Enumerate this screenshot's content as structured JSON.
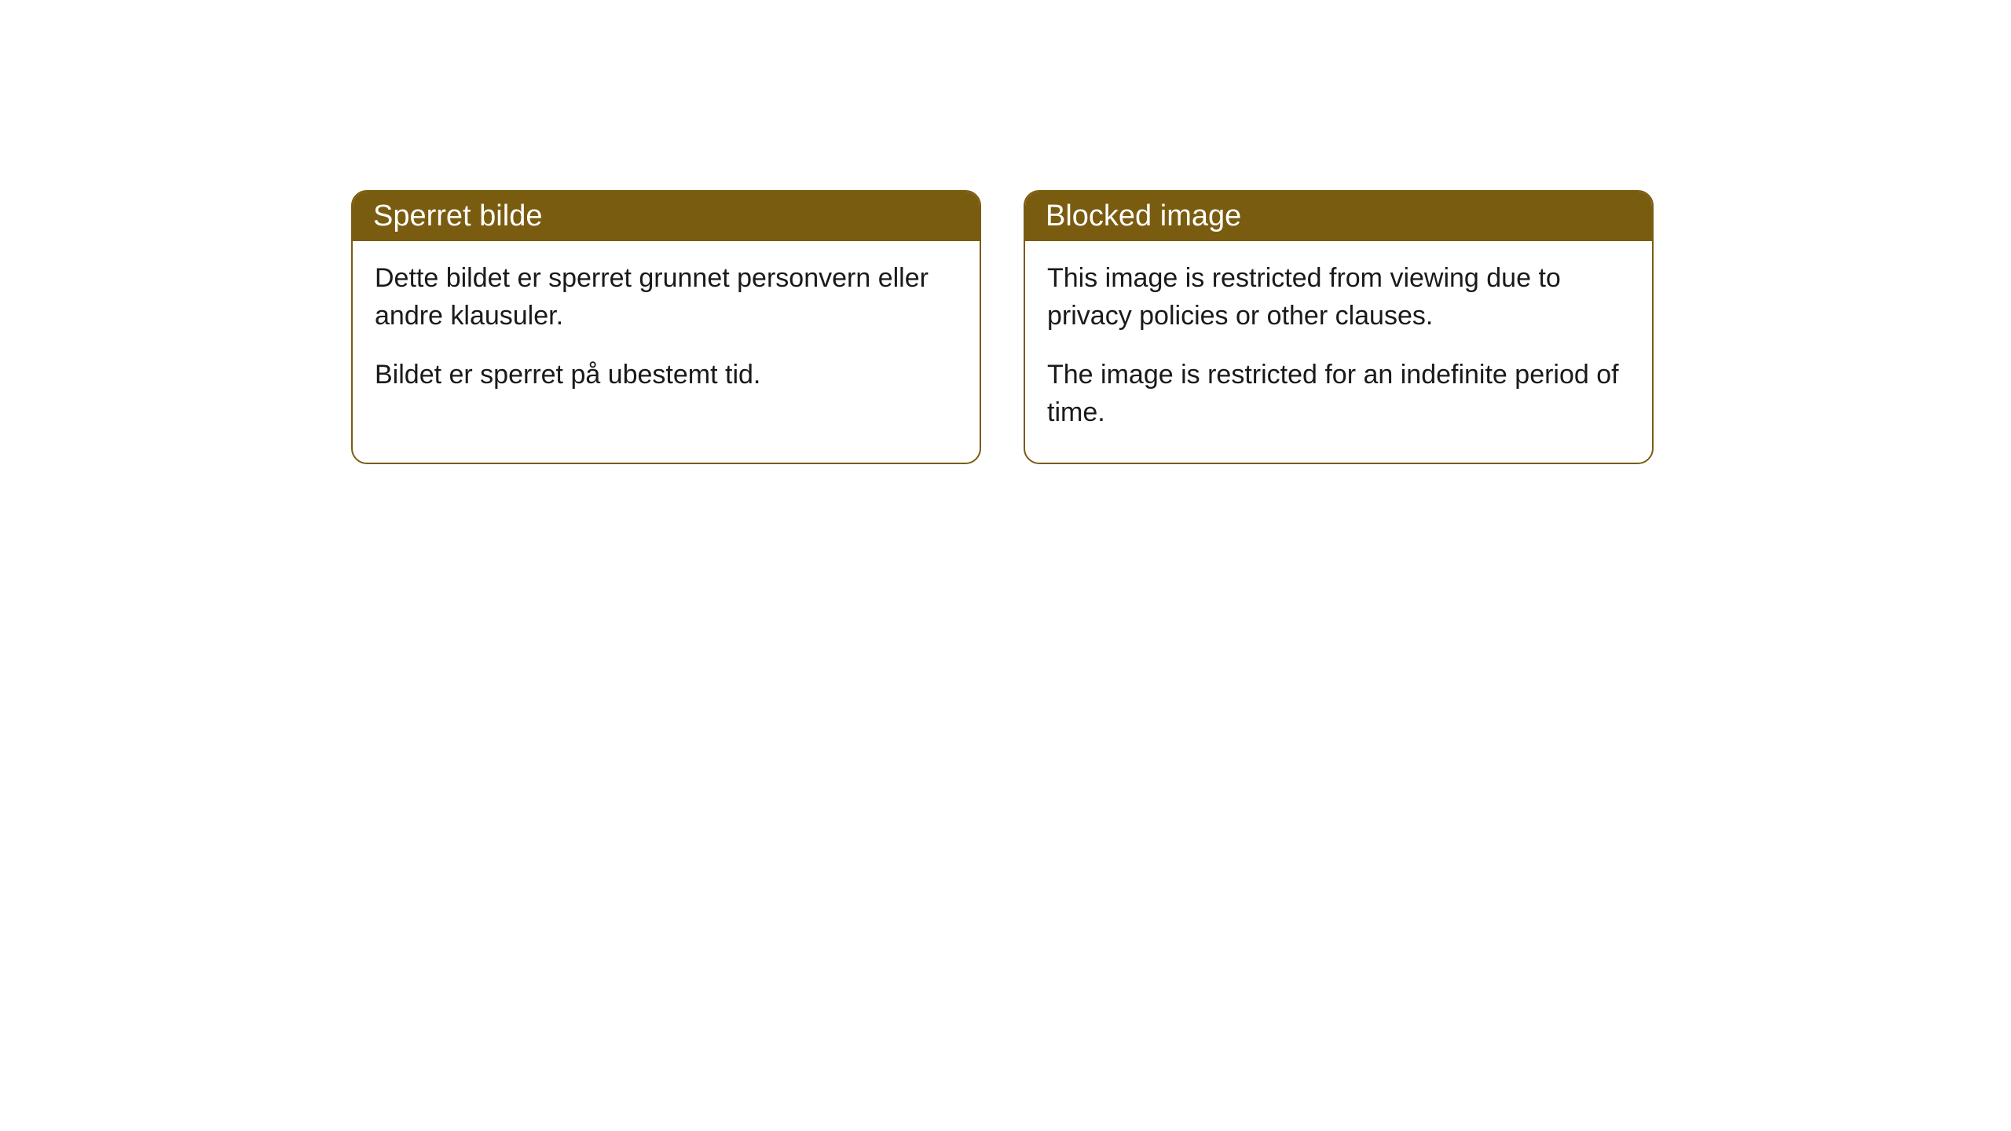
{
  "cards": [
    {
      "title": "Sperret bilde",
      "paragraph1": "Dette bildet er sperret grunnet personvern eller andre klausuler.",
      "paragraph2": "Bildet er sperret på ubestemt tid."
    },
    {
      "title": "Blocked image",
      "paragraph1": "This image is restricted from viewing due to privacy policies or other clauses.",
      "paragraph2": "The image is restricted for an indefinite period of time."
    }
  ],
  "style": {
    "header_background_color": "#7a5c10",
    "header_text_color": "#ffffff",
    "border_color": "#7a5c10",
    "body_text_color": "#1a1a1a",
    "card_background_color": "#ffffff",
    "page_background_color": "#ffffff",
    "border_radius": 20,
    "header_font_size": 38,
    "body_font_size": 34
  }
}
